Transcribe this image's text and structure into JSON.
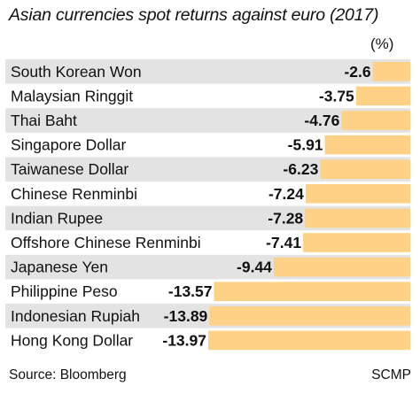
{
  "chart_data": {
    "type": "bar",
    "title": "Asian currencies spot returns against euro (2017)",
    "unit": "(%)",
    "categories": [
      "South Korean Won",
      "Malaysian Ringgit",
      "Thai Baht",
      "Singapore Dollar",
      "Taiwanese Dollar",
      "Chinese Renminbi",
      "Indian Rupee",
      "Offshore Chinese Renminbi",
      "Japanese Yen",
      "Philippine Peso",
      "Indonesian Rupiah",
      "Hong Kong Dollar"
    ],
    "values": [
      -2.6,
      -3.75,
      -4.76,
      -5.91,
      -6.23,
      -7.24,
      -7.28,
      -7.41,
      -9.44,
      -13.57,
      -13.89,
      -13.97
    ],
    "value_labels": [
      "-2.6",
      "-3.75",
      "-4.76",
      "-5.91",
      "-6.23",
      "-7.24",
      "-7.28",
      "-7.41",
      "-9.44",
      "-13.57",
      "-13.89",
      "-13.97"
    ],
    "orientation": "horizontal",
    "bar_color": "#fdd286",
    "band_color": "#e3e3e3",
    "grid": false,
    "legend": "none"
  },
  "footer": {
    "source": "Source: Bloomberg",
    "credit": "SCMP"
  }
}
